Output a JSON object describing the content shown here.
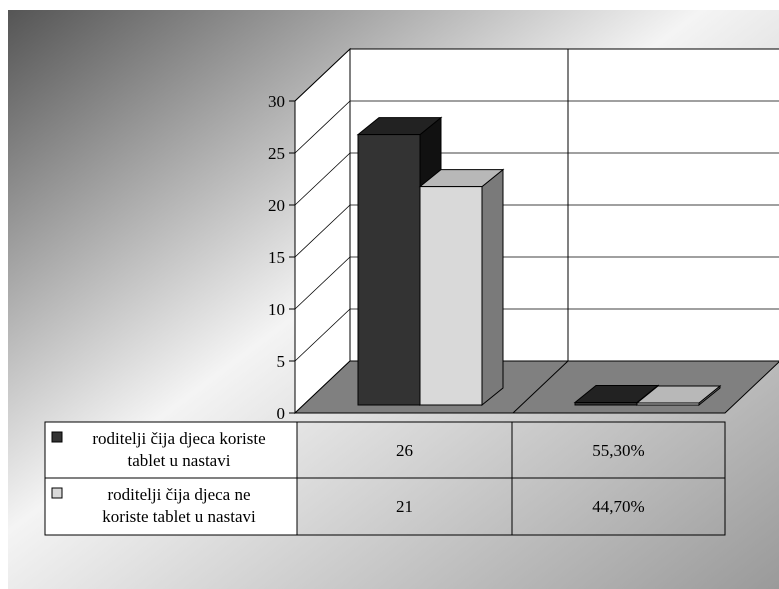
{
  "chart_data": {
    "type": "bar",
    "categories": [
      "",
      ""
    ],
    "series": [
      {
        "name": "roditelji čija djeca koriste tablet u nastavi",
        "values": [
          26,
          0.553
        ],
        "labels": [
          "26",
          "55,30%"
        ],
        "color": "#333333"
      },
      {
        "name": "roditelji čija djeca ne koriste tablet u nastavi",
        "values": [
          21,
          0.447
        ],
        "labels": [
          "21",
          "44,70%"
        ],
        "color": "#d9d9d9"
      }
    ],
    "yticks": [
      0,
      5,
      10,
      15,
      20,
      25,
      30
    ],
    "ylim": [
      0,
      30
    ],
    "grid": true,
    "legend": "data-table",
    "title": "",
    "xlabel": "",
    "ylabel": ""
  }
}
